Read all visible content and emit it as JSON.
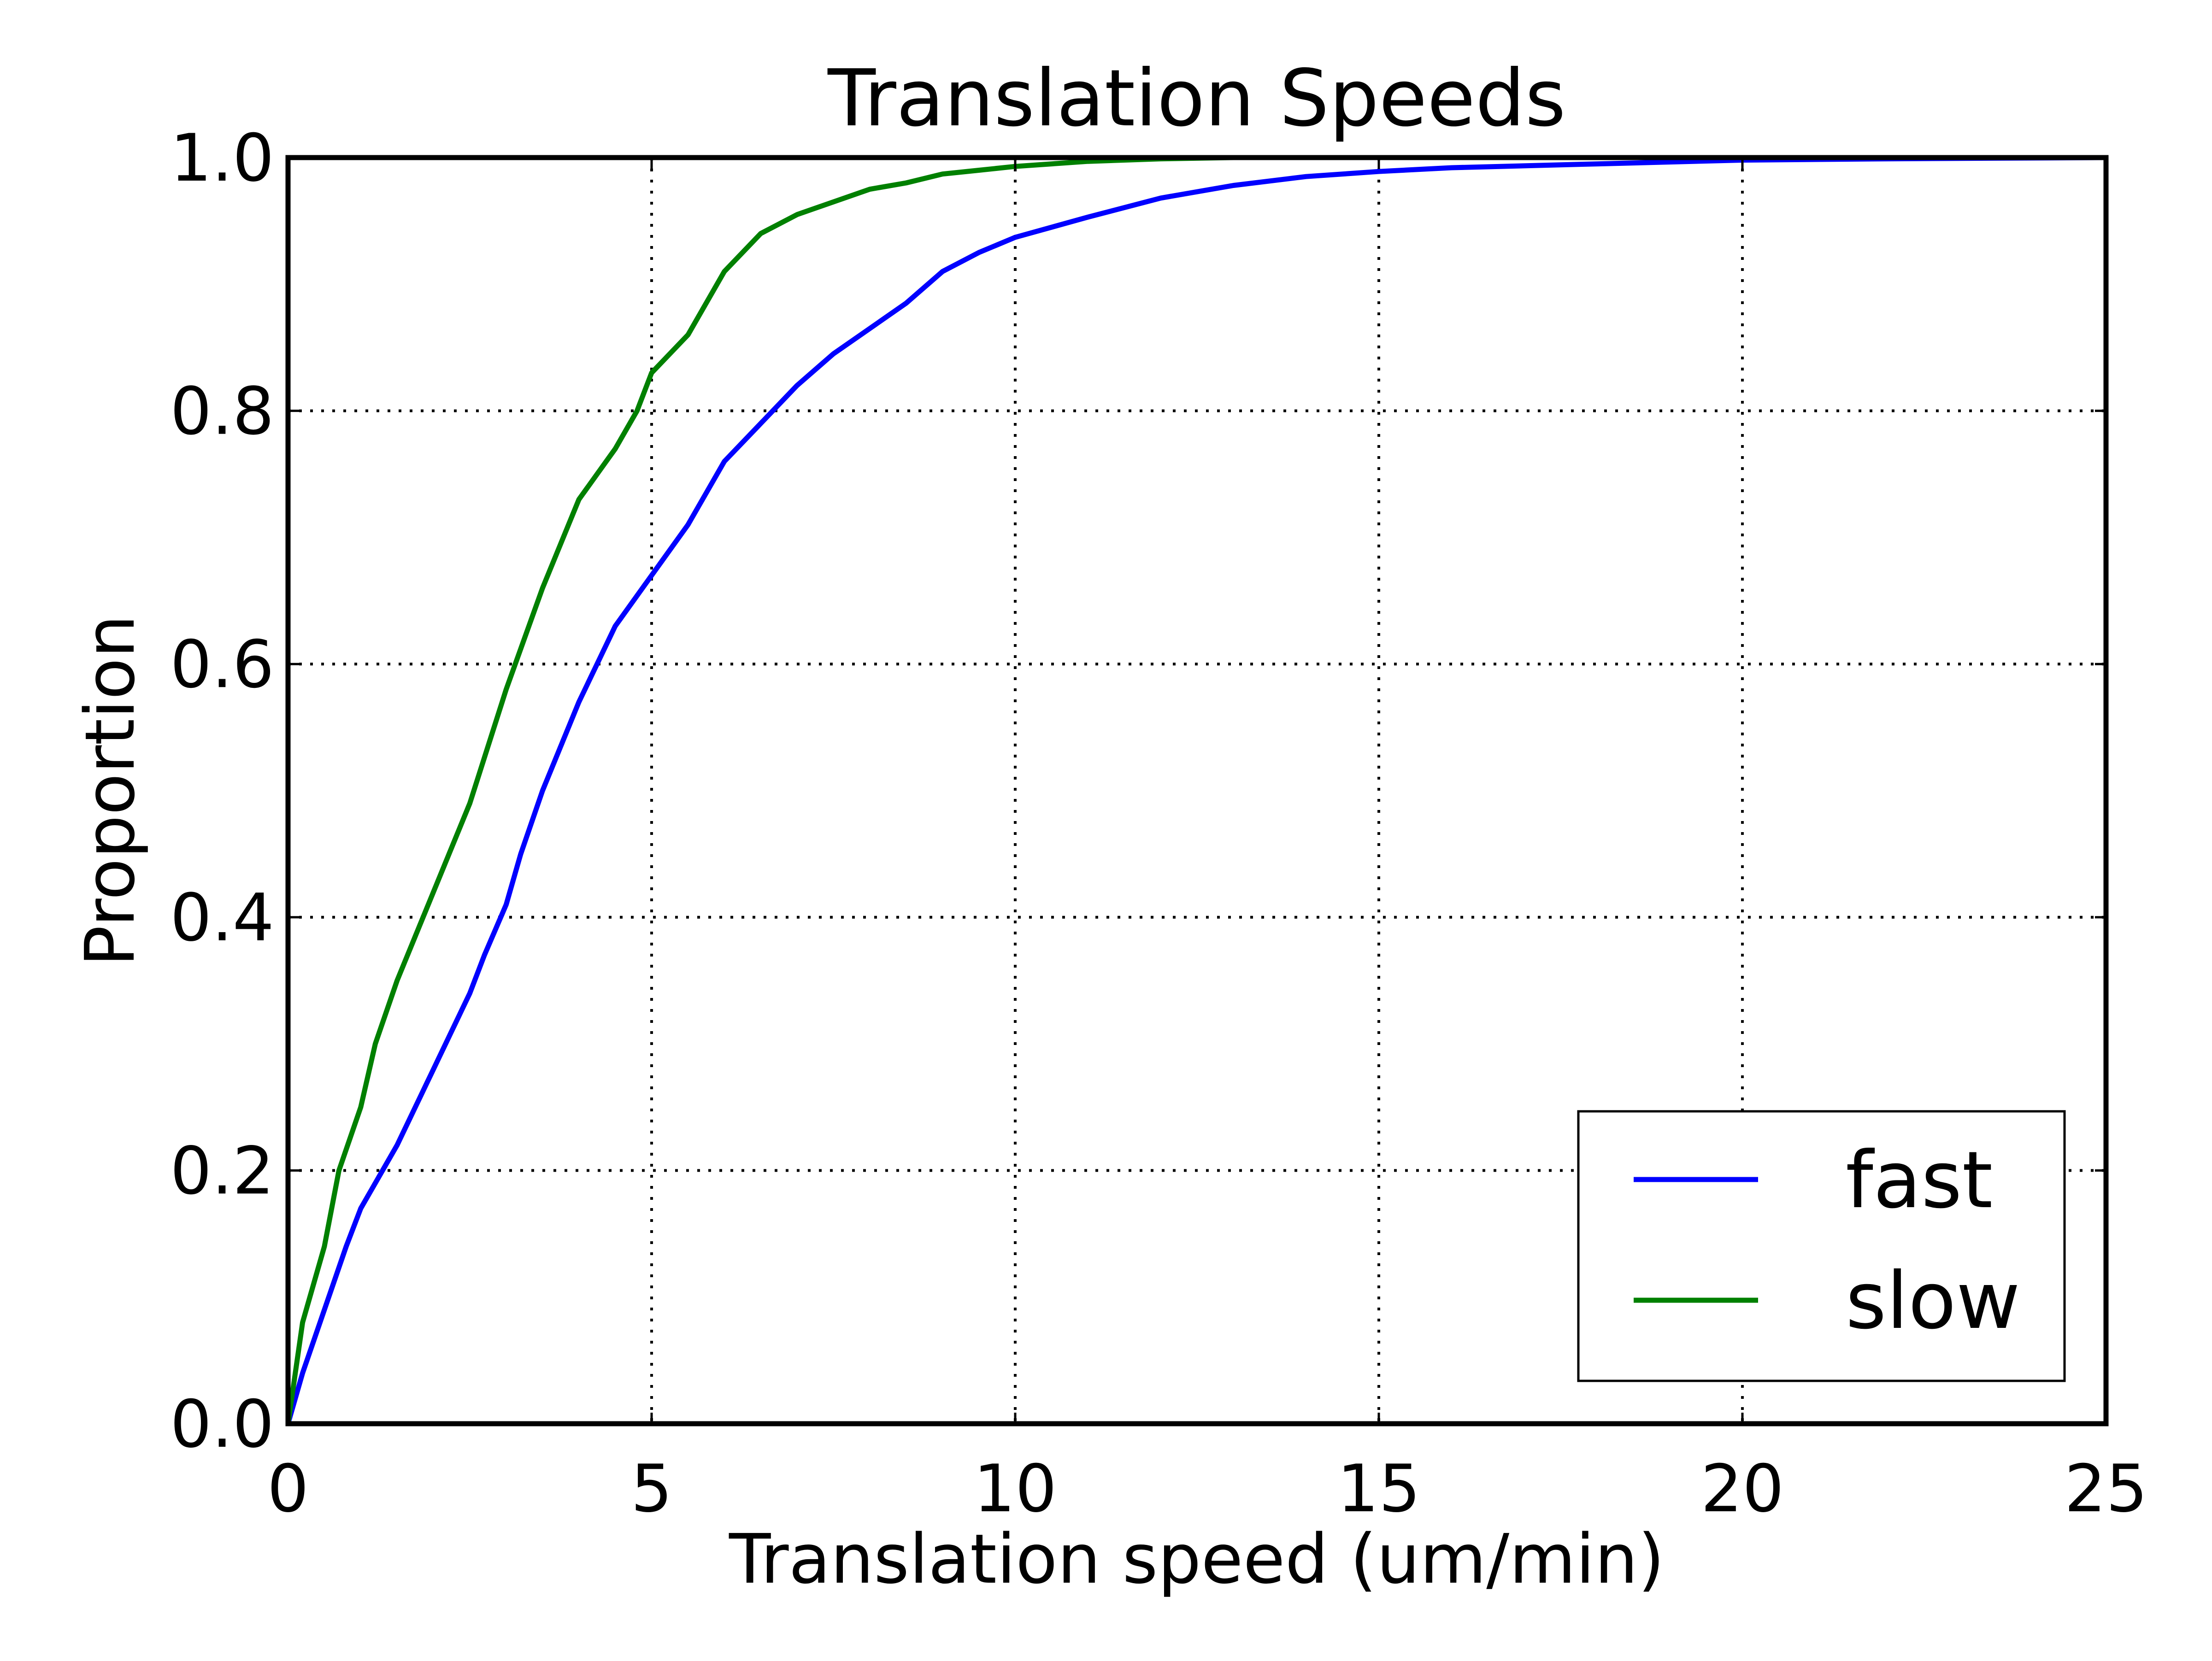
{
  "chart_data": {
    "type": "line",
    "title": "Translation Speeds",
    "xlabel": "Translation speed (um/min)",
    "ylabel": "Proportion",
    "xlim": [
      0,
      25
    ],
    "ylim": [
      0,
      1.0
    ],
    "x_ticks": [
      0,
      5,
      10,
      15,
      20,
      25
    ],
    "x_tick_labels": [
      "0",
      "5",
      "10",
      "15",
      "20",
      "25"
    ],
    "y_ticks": [
      0,
      0.2,
      0.4,
      0.6,
      0.8,
      1.0
    ],
    "y_tick_labels": [
      "0.0",
      "0.2",
      "0.4",
      "0.6",
      "0.8",
      "1.0"
    ],
    "grid": true,
    "legend_position": "lower-right",
    "series": [
      {
        "name": "fast",
        "color": "#0000ff",
        "x": [
          0,
          0.2,
          0.5,
          0.8,
          1.0,
          1.5,
          2.0,
          2.5,
          2.7,
          3.0,
          3.2,
          3.5,
          4.0,
          4.5,
          5.0,
          5.5,
          6.0,
          6.5,
          7.0,
          7.5,
          8.0,
          8.5,
          9.0,
          9.5,
          10.0,
          11.0,
          12.0,
          13.0,
          14.0,
          15.0,
          16.0,
          18.0,
          20.0,
          22.0,
          25.0
        ],
        "y": [
          0,
          0.04,
          0.09,
          0.14,
          0.17,
          0.22,
          0.28,
          0.34,
          0.37,
          0.41,
          0.45,
          0.5,
          0.57,
          0.63,
          0.67,
          0.71,
          0.76,
          0.79,
          0.82,
          0.845,
          0.865,
          0.885,
          0.91,
          0.925,
          0.937,
          0.953,
          0.968,
          0.978,
          0.985,
          0.989,
          0.992,
          0.995,
          0.998,
          0.999,
          1.0
        ]
      },
      {
        "name": "slow",
        "color": "#008000",
        "x": [
          0,
          0.2,
          0.5,
          0.7,
          1.0,
          1.2,
          1.5,
          2.0,
          2.5,
          3.0,
          3.5,
          4.0,
          4.5,
          4.8,
          5.0,
          5.5,
          6.0,
          6.5,
          7.0,
          7.5,
          8.0,
          8.5,
          9.0,
          9.5,
          10.0,
          11.0,
          12.0,
          13.0,
          25.0
        ],
        "y": [
          0,
          0.08,
          0.14,
          0.2,
          0.25,
          0.3,
          0.35,
          0.42,
          0.49,
          0.58,
          0.66,
          0.73,
          0.77,
          0.8,
          0.83,
          0.86,
          0.91,
          0.94,
          0.955,
          0.965,
          0.975,
          0.98,
          0.987,
          0.99,
          0.993,
          0.997,
          0.999,
          1.0,
          1.0
        ]
      }
    ]
  }
}
